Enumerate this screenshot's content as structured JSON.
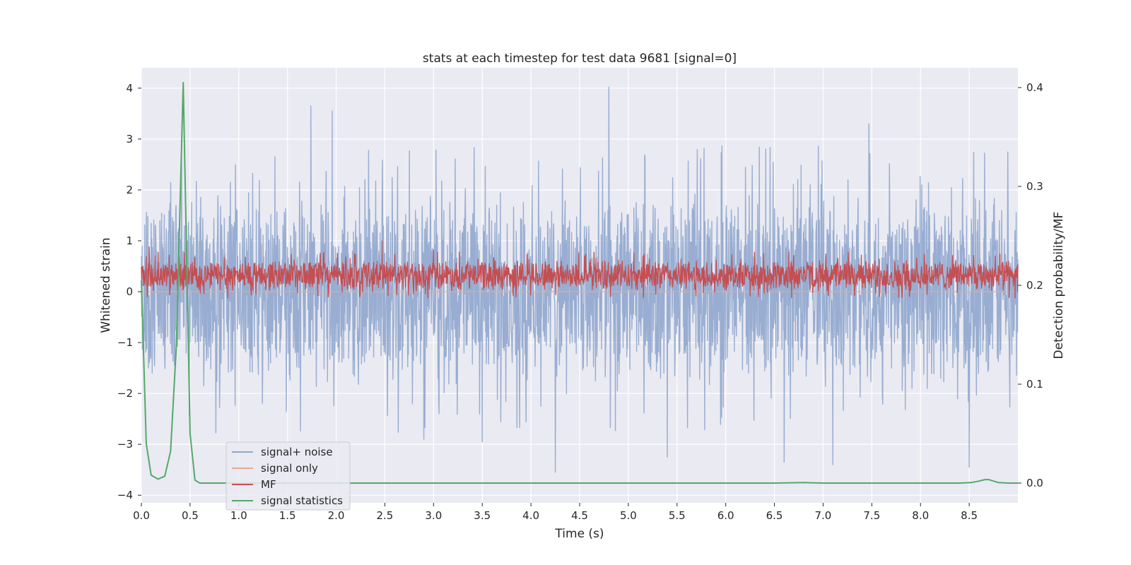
{
  "chart_data": {
    "type": "line",
    "title": "stats at each timestep for test data 9681 [signal=0]",
    "xlabel": "Time (s)",
    "ylabel": "Whitened strain",
    "y2label": "Detection probability/MF",
    "xlim": [
      0.0,
      9.0
    ],
    "ylim": [
      -4.15,
      4.4
    ],
    "y2lim": [
      -0.02,
      0.42
    ],
    "xticks": [
      "0.0",
      "0.5",
      "1.0",
      "1.5",
      "2.0",
      "2.5",
      "3.0",
      "3.5",
      "4.0",
      "4.5",
      "5.0",
      "5.5",
      "6.0",
      "6.5",
      "7.0",
      "7.5",
      "8.0",
      "8.5"
    ],
    "xtick_values": [
      0.0,
      0.5,
      1.0,
      1.5,
      2.0,
      2.5,
      3.0,
      3.5,
      4.0,
      4.5,
      5.0,
      5.5,
      6.0,
      6.5,
      7.0,
      7.5,
      8.0,
      8.5
    ],
    "yticks": [
      "−4",
      "−3",
      "−2",
      "−1",
      "0",
      "1",
      "2",
      "3",
      "4"
    ],
    "ytick_values": [
      -4,
      -3,
      -2,
      -1,
      0,
      1,
      2,
      3,
      4
    ],
    "y2ticks": [
      "0.0",
      "0.1",
      "0.2",
      "0.3",
      "0.4"
    ],
    "y2tick_values": [
      0.0,
      0.1,
      0.2,
      0.3,
      0.4
    ],
    "grid": true,
    "legend_position": "lower-left",
    "series": [
      {
        "name": "signal+ noise",
        "axis": "left",
        "color": "#8fa6cd",
        "style": "dense-noise",
        "typical_range": [
          -1.9,
          2.0
        ],
        "peaks": [
          {
            "x": 1.74,
            "y": 3.65
          },
          {
            "x": 1.96,
            "y": 3.55
          },
          {
            "x": 4.8,
            "y": 4.02
          },
          {
            "x": 7.47,
            "y": 3.3
          },
          {
            "x": 4.25,
            "y": -3.55
          },
          {
            "x": 5.4,
            "y": -3.25
          },
          {
            "x": 7.1,
            "y": -3.4
          },
          {
            "x": 8.5,
            "y": -3.45
          },
          {
            "x": 6.6,
            "y": -3.35
          },
          {
            "x": 3.5,
            "y": -2.95
          },
          {
            "x": 2.9,
            "y": -2.9
          }
        ]
      },
      {
        "name": "signal only",
        "axis": "left",
        "color": "#e8a98f",
        "style": "flat",
        "values_constant": 0.0
      },
      {
        "name": "MF",
        "axis": "left",
        "color": "#c44e52",
        "style": "dense-noise",
        "typical_range": [
          0.0,
          0.65
        ],
        "peaks": [
          {
            "x": 0.08,
            "y": 0.88
          },
          {
            "x": 2.47,
            "y": 1.0
          },
          {
            "x": 3.0,
            "y": 0.82
          },
          {
            "x": 6.65,
            "y": 0.78
          }
        ]
      },
      {
        "name": "signal statistics",
        "axis": "right",
        "color": "#55a868",
        "style": "line",
        "x": [
          0.0,
          0.05,
          0.1,
          0.17,
          0.24,
          0.3,
          0.36,
          0.43,
          0.5,
          0.55,
          0.6,
          0.7,
          1.0,
          2.0,
          3.0,
          4.0,
          5.0,
          6.0,
          6.5,
          6.8,
          7.0,
          8.0,
          8.4,
          8.52,
          8.6,
          8.66,
          8.7,
          8.75,
          8.8,
          8.9,
          9.0
        ],
        "y": [
          0.205,
          0.04,
          0.008,
          0.004,
          0.007,
          0.032,
          0.14,
          0.405,
          0.05,
          0.003,
          0.0,
          0.0,
          0.0,
          0.0,
          0.0,
          0.0,
          0.0,
          0.0,
          0.0,
          0.0005,
          0.0,
          0.0,
          0.0,
          0.0005,
          0.002,
          0.0035,
          0.0035,
          0.002,
          0.0005,
          0.0,
          0.0
        ]
      }
    ]
  }
}
